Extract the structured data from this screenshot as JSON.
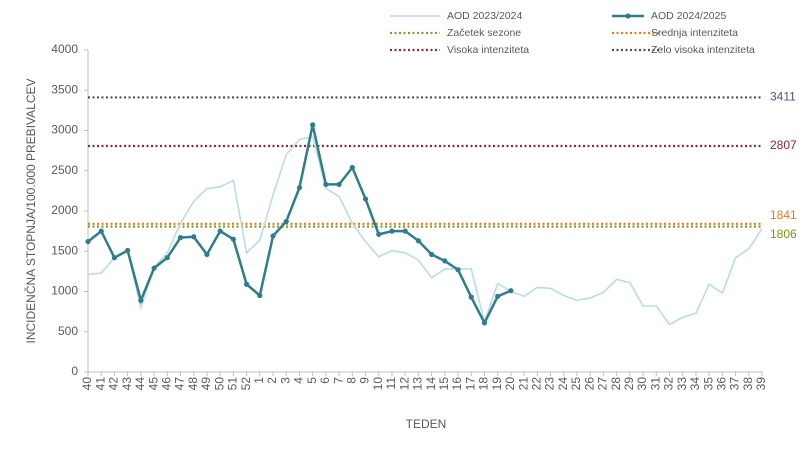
{
  "chart_data": {
    "type": "line",
    "categories": [
      "40",
      "41",
      "42",
      "43",
      "44",
      "45",
      "46",
      "47",
      "48",
      "49",
      "50",
      "51",
      "52",
      "1",
      "2",
      "3",
      "4",
      "5",
      "6",
      "7",
      "8",
      "9",
      "10",
      "11",
      "12",
      "13",
      "14",
      "15",
      "16",
      "17",
      "18",
      "19",
      "20",
      "21",
      "22",
      "23",
      "24",
      "25",
      "26",
      "27",
      "28",
      "29",
      "30",
      "31",
      "32",
      "33",
      "34",
      "35",
      "36",
      "37",
      "38",
      "39"
    ],
    "series": [
      {
        "name": "AOD 2023/2024",
        "color": "#b7dde6",
        "values": [
          1210,
          1230,
          1420,
          1500,
          800,
          1300,
          1480,
          1850,
          2120,
          2280,
          2300,
          2380,
          1480,
          1640,
          2200,
          2700,
          2890,
          2920,
          2280,
          2180,
          1850,
          1620,
          1430,
          1510,
          1480,
          1390,
          1170,
          1280,
          1280,
          1280,
          620,
          1100,
          1000,
          940,
          1050,
          1040,
          950,
          890,
          920,
          990,
          1150,
          1110,
          820,
          820,
          590,
          680,
          730,
          1090,
          980,
          1420,
          1530,
          1780
        ]
      },
      {
        "name": "AOD 2024/2025",
        "color": "#2e7d8c",
        "values": [
          1620,
          1750,
          1420,
          1510,
          890,
          1290,
          1420,
          1670,
          1680,
          1460,
          1750,
          1650,
          1090,
          950,
          1690,
          1870,
          2290,
          3070,
          2330,
          2330,
          2540,
          2150,
          1710,
          1750,
          1750,
          1630,
          1460,
          1380,
          1270,
          930,
          610,
          940,
          1010,
          null,
          null,
          null,
          null,
          null,
          null,
          null,
          null,
          null,
          null,
          null,
          null,
          null,
          null,
          null,
          null,
          null,
          null,
          null
        ]
      }
    ],
    "thresholds": [
      {
        "name": "Začetek sezone",
        "color": "#8a9a2a",
        "value": 1806
      },
      {
        "name": "Srednja intenziteta",
        "color": "#e07b1a",
        "value": 1841
      },
      {
        "name": "Visoka intenziteta",
        "color": "#8b2a3a",
        "value": 2807
      },
      {
        "name": "Zelo visoka intenziteta",
        "color": "#4a4a7a",
        "value": 3411
      }
    ],
    "threshold_label_colors": [
      "#8a8a20",
      "#e07b1a",
      "#8b2040",
      "#5a4a8a"
    ],
    "xlabel": "TEDEN",
    "ylabel": "INCIDENČNA STOPNJA/100.000 PREBIVALCEV",
    "ylim": [
      0,
      4000
    ],
    "yticks": [
      0,
      500,
      1000,
      1500,
      2000,
      2500,
      3000,
      3500,
      4000
    ]
  }
}
